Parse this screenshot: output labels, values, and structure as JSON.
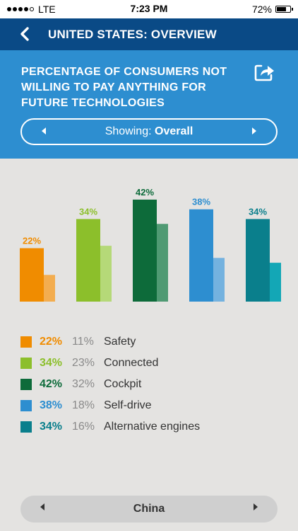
{
  "status": {
    "carrier": "LTE",
    "time": "7:23 PM",
    "battery": "72%",
    "battery_level": 0.72
  },
  "nav": {
    "title": "UNITED STATES: OVERVIEW",
    "back_icon": "chevron-left-icon"
  },
  "header": {
    "title": "PERCENTAGE OF CONSUMERS NOT WILLING TO PAY ANYTHING FOR FUTURE TECHNOLOGIES",
    "share_icon": "share-icon",
    "filter": {
      "prefix": "Showing:",
      "value": "Overall"
    }
  },
  "chart_data": {
    "type": "bar",
    "categories": [
      "Safety",
      "Connected",
      "Cockpit",
      "Self-drive",
      "Alternative engines"
    ],
    "series": [
      {
        "values": [
          22,
          34,
          42,
          38,
          34
        ],
        "labels": [
          "22%",
          "34%",
          "42%",
          "38%",
          "34%"
        ]
      },
      {
        "values": [
          11,
          23,
          32,
          18,
          16
        ]
      }
    ],
    "colors": [
      "#f08c00",
      "#8cbf2b",
      "#0d6b3a",
      "#2d8ed0",
      "#0a7f8c"
    ],
    "light_colors": [
      "#f3ad4f",
      "#b5d978",
      "#4f9a73",
      "#74b2df",
      "#13a7b6"
    ],
    "ylim": [
      0,
      45
    ]
  },
  "legend": [
    {
      "primary": "22%",
      "secondary": "11%",
      "label": "Safety",
      "color": "#f08c00"
    },
    {
      "primary": "34%",
      "secondary": "23%",
      "label": "Connected",
      "color": "#8cbf2b"
    },
    {
      "primary": "42%",
      "secondary": "32%",
      "label": "Cockpit",
      "color": "#0d6b3a"
    },
    {
      "primary": "38%",
      "secondary": "18%",
      "label": "Self-drive",
      "color": "#2d8ed0"
    },
    {
      "primary": "34%",
      "secondary": "16%",
      "label": "Alternative engines",
      "color": "#0a7f8c"
    }
  ],
  "bottom": {
    "country": "China"
  }
}
